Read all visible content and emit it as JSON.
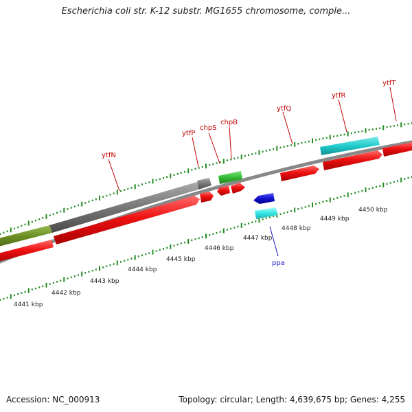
{
  "title": "Escherichia coli str. K-12 substr. MG1655 chromosome, comple...",
  "footer": {
    "accession": "Accession: NC_000913",
    "summary": "Topology: circular; Length: 4,639,675 bp; Genes: 4,255"
  },
  "colors": {
    "gene_red": "#ee1111",
    "gene_gray": "#777777",
    "gene_olive": "#6b8e23",
    "gene_green": "#33bb33",
    "gene_cyan": "#22cccc",
    "gene_cyan_light": "#33e5e5",
    "gene_blue": "#1111cc",
    "tick_green": "#228b22",
    "backbone": "#888888",
    "label_red": "#c00000",
    "label_blue": "#1010c0"
  },
  "scale_labels": [
    "4441 kbp",
    "4442 kbp",
    "4443 kbp",
    "4444 kbp",
    "4445 kbp",
    "4446 kbp",
    "4447 kbp",
    "4448 kbp",
    "4449 kbp",
    "4450 kbp"
  ],
  "gene_labels": [
    {
      "name": "ytfN",
      "color": "red"
    },
    {
      "name": "ytfP",
      "color": "red"
    },
    {
      "name": "chpS",
      "color": "red"
    },
    {
      "name": "chpB",
      "color": "red"
    },
    {
      "name": "ytfQ",
      "color": "red"
    },
    {
      "name": "ytfR",
      "color": "red"
    },
    {
      "name": "ytfT",
      "color": "red"
    },
    {
      "name": "ppa",
      "color": "blue"
    }
  ]
}
